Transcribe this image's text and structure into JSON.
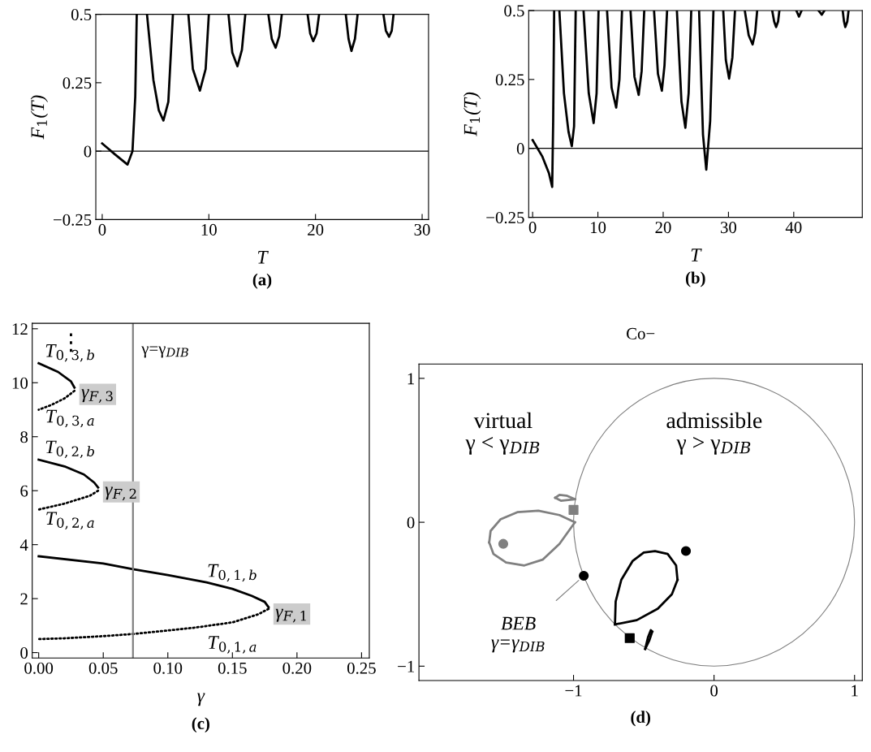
{
  "chart_data": [
    {
      "type": "line",
      "xlabel": "T",
      "ylabel": "F$_{1}$(T)",
      "annotations": [
        "(a)"
      ],
      "xlim": [
        -0.6,
        30.6
      ],
      "ylim": [
        -0.25,
        0.5
      ],
      "xticks": [
        0,
        10,
        20,
        30
      ],
      "yticks": [
        -0.25,
        0,
        0.25,
        0.5
      ],
      "ref_lines": [
        {
          "axis": "y",
          "value": 0,
          "color": "#000000"
        }
      ],
      "series": [
        {
          "color": "#000000",
          "x": [
            0,
            1.2,
            2.37,
            2.84,
            3.1,
            3.24,
            null,
            4.2,
            4.8,
            5.3,
            5.74,
            6.2,
            6.63,
            null,
            8.08,
            8.5,
            9.16,
            9.7,
            10.0,
            null,
            11.84,
            12.2,
            12.68,
            13.1,
            13.42,
            null,
            15.58,
            15.9,
            16.26,
            16.6,
            16.84,
            null,
            19.26,
            19.5,
            19.79,
            20.1,
            20.34,
            null,
            22.84,
            23.1,
            23.37,
            23.7,
            23.95,
            null,
            26.37,
            26.6,
            26.9,
            27.15,
            27.32
          ],
          "values": [
            0.028,
            -0.012,
            -0.049,
            0.0,
            0.2,
            0.5,
            null,
            0.5,
            0.26,
            0.15,
            0.112,
            0.18,
            0.5,
            null,
            0.5,
            0.3,
            0.221,
            0.3,
            0.5,
            null,
            0.5,
            0.36,
            0.31,
            0.37,
            0.5,
            null,
            0.5,
            0.41,
            0.378,
            0.42,
            0.5,
            null,
            0.5,
            0.43,
            0.402,
            0.43,
            0.5,
            null,
            0.5,
            0.41,
            0.366,
            0.41,
            0.5,
            null,
            0.5,
            0.44,
            0.418,
            0.44,
            0.5
          ]
        }
      ]
    },
    {
      "type": "line",
      "xlabel": "T",
      "ylabel": "F$_{1}$(T)",
      "annotations": [
        "(b)"
      ],
      "xlim": [
        -0.6,
        50.5
      ],
      "ylim": [
        -0.25,
        0.5
      ],
      "xticks": [
        0,
        10,
        20,
        30,
        40
      ],
      "yticks": [
        -0.25,
        0,
        0.25,
        0.5
      ],
      "ref_lines": [
        {
          "axis": "y",
          "value": 0,
          "color": "#000000"
        }
      ],
      "series": [
        {
          "color": "#000000",
          "x": [
            0,
            1.5,
            2.5,
            3.0,
            3.15,
            3.3,
            null,
            4.1,
            4.8,
            5.5,
            6.0,
            6.35,
            6.6,
            null,
            7.8,
            8.6,
            9.35,
            9.8,
            10.1,
            null,
            11.4,
            12.1,
            12.8,
            13.3,
            13.7,
            null,
            15.0,
            15.6,
            16.25,
            16.7,
            17.1,
            null,
            18.6,
            19.2,
            19.8,
            20.2,
            20.6,
            null,
            22.1,
            22.8,
            23.4,
            23.9,
            24.3,
            null,
            25.5,
            26.1,
            26.6,
            27.2,
            27.7,
            null,
            29.2,
            29.6,
            30.1,
            30.6,
            31.0,
            null,
            32.5,
            33.1,
            33.7,
            34.1,
            34.4,
            null,
            36.7,
            37.0,
            37.3,
            37.6,
            37.8,
            null,
            40.4,
            40.8,
            41.2,
            null,
            43.8,
            44.3,
            44.7,
            null,
            47.5,
            47.7,
            47.9,
            48.2,
            48.4
          ],
          "values": [
            0.03,
            -0.03,
            -0.09,
            -0.14,
            0.1,
            0.5,
            null,
            0.5,
            0.2,
            0.06,
            0.008,
            0.08,
            0.5,
            null,
            0.5,
            0.2,
            0.092,
            0.2,
            0.5,
            null,
            0.5,
            0.22,
            0.148,
            0.25,
            0.5,
            null,
            0.5,
            0.26,
            0.194,
            0.28,
            0.5,
            null,
            0.5,
            0.27,
            0.209,
            0.3,
            0.5,
            null,
            0.5,
            0.17,
            0.075,
            0.2,
            0.5,
            null,
            0.5,
            0.05,
            -0.077,
            0.1,
            0.5,
            null,
            0.5,
            0.32,
            0.253,
            0.33,
            0.5,
            null,
            0.5,
            0.41,
            0.377,
            0.42,
            0.5,
            null,
            0.5,
            0.46,
            0.44,
            0.46,
            0.5,
            null,
            0.5,
            0.478,
            0.5,
            null,
            0.5,
            0.485,
            0.5,
            null,
            0.5,
            0.46,
            0.44,
            0.46,
            0.5
          ]
        }
      ]
    },
    {
      "type": "line",
      "xlabel": "γ",
      "annotations": [
        "(c)",
        {
          "text": "T$_{0,3,b}$",
          "x": 0,
          "y": 10.72
        },
        {
          "text": "T$_{0,3,a}$",
          "x": 0,
          "y": 9.0
        },
        {
          "text": "γ$_{F,3}$",
          "x": 0.0277,
          "y": 9.82
        },
        {
          "text": "T$_{0,2,b}$",
          "x": 0,
          "y": 7.15
        },
        {
          "text": "T$_{0,2,a}$",
          "x": 0,
          "y": 5.3
        },
        {
          "text": "γ$_{F,2}$",
          "x": 0.046,
          "y": 6.12
        },
        {
          "text": "T$_{0,1,b}$",
          "x": 0.15,
          "y": 2.36
        },
        {
          "text": "T$_{0,1,a}$",
          "x": 0.15,
          "y": 1.12
        },
        {
          "text": "γ$_{F,1}$",
          "x": 0.178,
          "y": 1.68
        },
        "⋮"
      ],
      "xlim": [
        -0.005,
        0.256
      ],
      "ylim": [
        -0.2,
        12.2
      ],
      "xticks": [
        {
          "value": 0,
          "label": "0.00"
        },
        0.05,
        {
          "value": 0.1,
          "label": "0.10"
        },
        0.15,
        {
          "value": 0.2,
          "label": "0.20"
        },
        0.25
      ],
      "yticks": [
        0,
        2,
        4,
        6,
        8,
        10,
        12
      ],
      "ref_lines": [
        {
          "axis": "x",
          "value": 0.073,
          "label": "γ=γ$_{DIB}$",
          "color": "#808080"
        }
      ],
      "series": [
        {
          "color": "#000000",
          "x": [
            0,
            0.05,
            0.073,
            0.1,
            0.13,
            0.15,
            0.165,
            0.175,
            0.178
          ],
          "values": [
            3.57,
            3.3,
            3.09,
            2.87,
            2.6,
            2.36,
            2.1,
            1.88,
            1.68
          ]
        },
        {
          "color": "#000000",
          "line_style": "dotted",
          "x": [
            0.178,
            0.17,
            0.15,
            0.12,
            0.1,
            0.073,
            0.05,
            0.02,
            0
          ],
          "values": [
            1.62,
            1.42,
            1.12,
            0.92,
            0.82,
            0.69,
            0.61,
            0.53,
            0.5
          ]
        },
        {
          "color": "#000000",
          "x": [
            0,
            0.02,
            0.035,
            0.043,
            0.046
          ],
          "values": [
            7.15,
            6.9,
            6.6,
            6.3,
            6.12
          ]
        },
        {
          "color": "#000000",
          "line_style": "dotted",
          "x": [
            0.046,
            0.04,
            0.02,
            0
          ],
          "values": [
            6.0,
            5.82,
            5.52,
            5.3
          ]
        },
        {
          "color": "#000000",
          "x": [
            0,
            0.015,
            0.025,
            0.0277
          ],
          "values": [
            10.72,
            10.4,
            10.05,
            9.82
          ]
        },
        {
          "color": "#000000",
          "line_style": "dotted",
          "x": [
            0.0277,
            0.02,
            0.01,
            0
          ],
          "values": [
            9.7,
            9.42,
            9.18,
            9.0
          ]
        }
      ]
    },
    {
      "type": "line",
      "title": "Co−",
      "annotations": [
        "(d)",
        "virtual\nγ < γ$_{DIB}$",
        "admissible\nγ > γ$_{DIB}$",
        {
          "text": "BEB\nγ=γ$_{DIB}$",
          "x": -0.927,
          "y": -0.372
        }
      ],
      "xlim": [
        -2.1,
        1.055
      ],
      "ylim": [
        -1.1,
        1.1
      ],
      "xticks": [
        -1,
        0,
        1
      ],
      "yticks": [
        -1,
        0,
        1
      ],
      "series": [
        {
          "color": "#808080",
          "x": [
            -1.6,
            -1.59,
            -1.52,
            -1.4,
            -1.25,
            -1.1,
            -0.99
          ],
          "values": [
            -0.14,
            -0.06,
            0.02,
            0.07,
            0.08,
            0.05,
            0.0
          ]
        },
        {
          "color": "#808080",
          "x": [
            -1.6,
            -1.57,
            -1.48,
            -1.35,
            -1.22,
            -1.1,
            -0.99
          ],
          "values": [
            -0.14,
            -0.22,
            -0.28,
            -0.3,
            -0.26,
            -0.15,
            0.0
          ]
        },
        {
          "color": "#808080",
          "x": [
            -1.13,
            -1.1,
            -1.05,
            -0.99
          ],
          "values": [
            0.17,
            0.19,
            0.185,
            0.16
          ]
        },
        {
          "color": "#808080",
          "x": [
            -1.13,
            -1.09,
            -0.99
          ],
          "values": [
            0.17,
            0.15,
            0.16
          ]
        },
        {
          "color": "#000000",
          "x": [
            -0.705,
            -0.7,
            -0.66,
            -0.58,
            -0.5,
            -0.42,
            -0.33,
            -0.27,
            -0.26
          ],
          "values": [
            -0.71,
            -0.55,
            -0.4,
            -0.27,
            -0.21,
            -0.2,
            -0.22,
            -0.3,
            -0.4
          ]
        },
        {
          "color": "#000000",
          "x": [
            -0.705,
            -0.55,
            -0.4,
            -0.3,
            -0.26
          ],
          "values": [
            -0.71,
            -0.68,
            -0.6,
            -0.5,
            -0.4
          ]
        },
        {
          "color": "#000000",
          "x": [
            -0.49,
            -0.47,
            -0.45,
            -0.44
          ],
          "values": [
            -0.88,
            -0.8,
            -0.75,
            -0.76
          ]
        },
        {
          "color": "#000000",
          "x": [
            -0.49,
            -0.46,
            -0.44
          ],
          "values": [
            -0.88,
            -0.82,
            -0.76
          ]
        },
        {
          "type": "scatter",
          "marker": "square",
          "color": "#808080",
          "x": [
            -1.0
          ],
          "values": [
            0.086
          ]
        },
        {
          "type": "scatter",
          "marker": "circle",
          "color": "#808080",
          "x": [
            -1.5
          ],
          "values": [
            -0.15
          ]
        },
        {
          "type": "scatter",
          "marker": "square",
          "color": "#000000",
          "x": [
            -0.6
          ],
          "values": [
            -0.805
          ]
        },
        {
          "type": "scatter",
          "marker": "circle",
          "color": "#000000",
          "x": [
            -0.2,
            -0.927
          ],
          "values": [
            -0.2,
            -0.372
          ]
        }
      ]
    }
  ]
}
